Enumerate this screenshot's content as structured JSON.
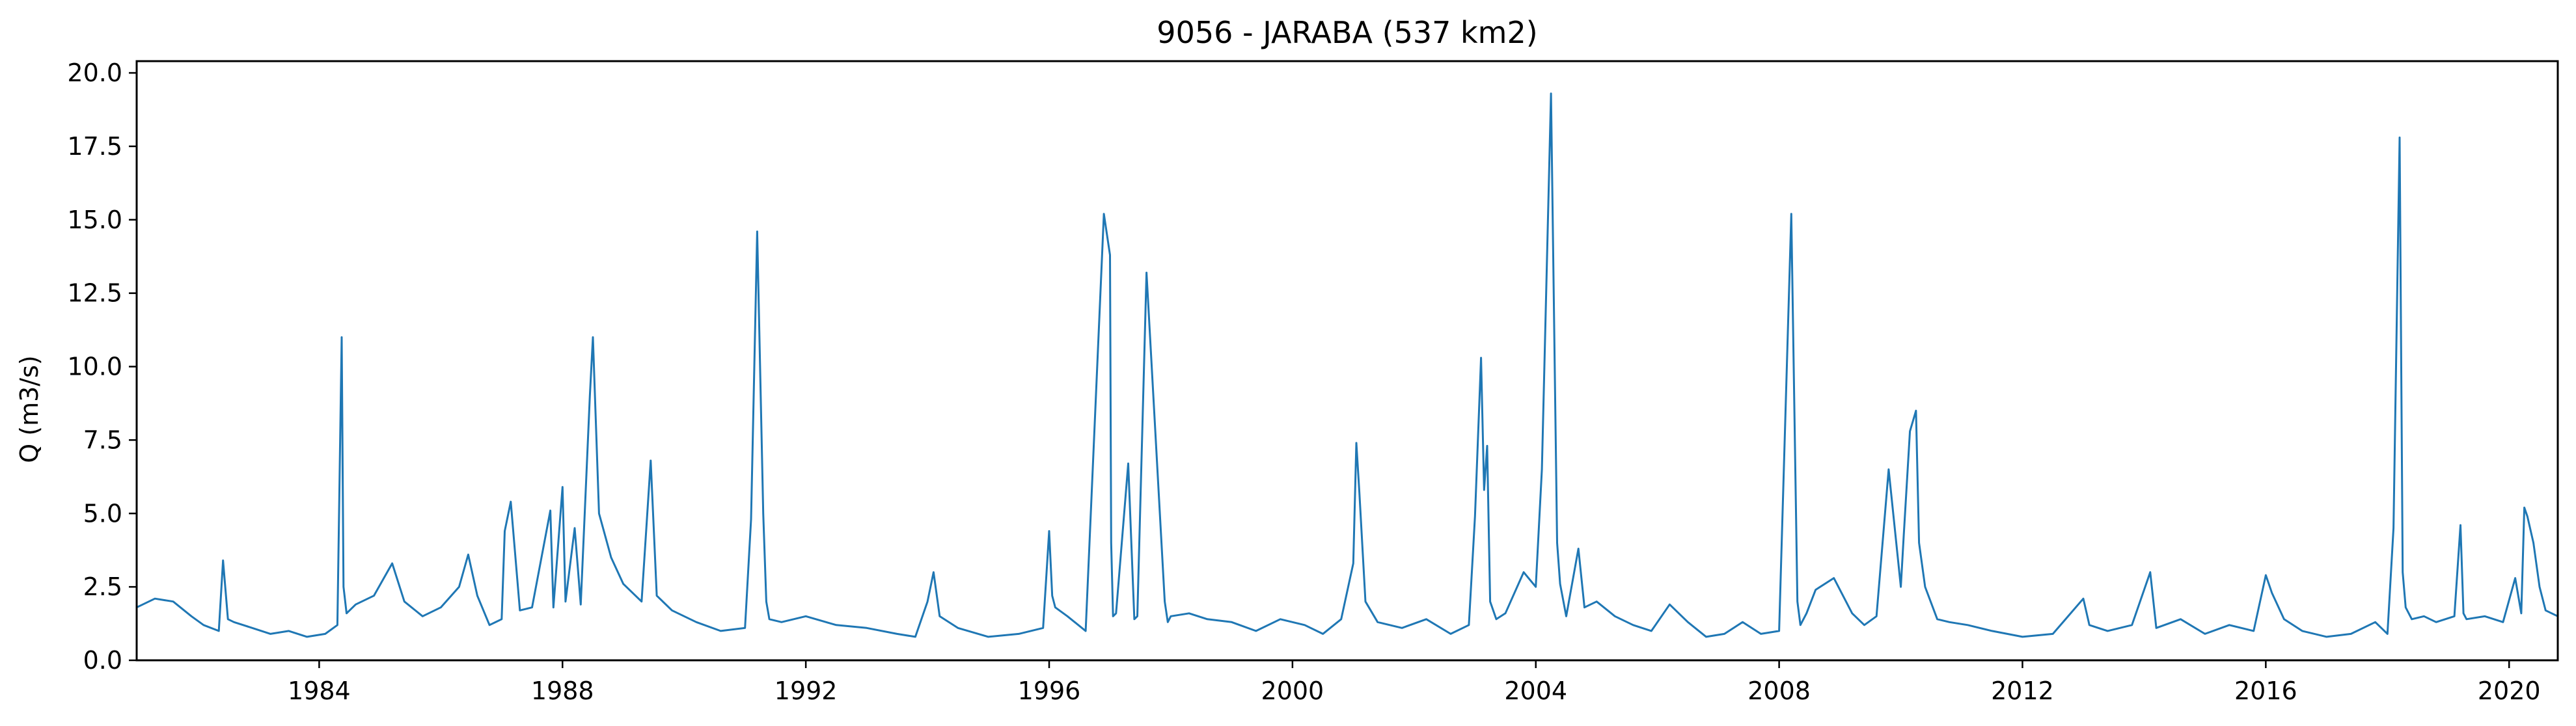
{
  "chart_data": {
    "type": "line",
    "title": "9056 - JARABA (537 km2)",
    "xlabel": "",
    "ylabel": "Q (m3/s)",
    "xlim": [
      1981.0,
      2020.8
    ],
    "ylim": [
      0.0,
      20.4
    ],
    "x_ticks": [
      1984,
      1988,
      1992,
      1996,
      2000,
      2004,
      2008,
      2012,
      2016,
      2020
    ],
    "y_ticks": [
      "0.0",
      "2.5",
      "5.0",
      "7.5",
      "10.0",
      "12.5",
      "15.0",
      "17.5",
      "20.0"
    ],
    "grid": false,
    "legend": "none",
    "series": [
      {
        "color": "#1f77b4",
        "x": [
          1981.0,
          1981.3,
          1981.6,
          1981.9,
          1982.1,
          1982.35,
          1982.42,
          1982.5,
          1982.6,
          1982.9,
          1983.2,
          1983.5,
          1983.8,
          1984.1,
          1984.3,
          1984.37,
          1984.4,
          1984.45,
          1984.6,
          1984.9,
          1985.2,
          1985.4,
          1985.7,
          1986.0,
          1986.3,
          1986.45,
          1986.6,
          1986.8,
          1987.0,
          1987.05,
          1987.15,
          1987.3,
          1987.5,
          1987.8,
          1987.85,
          1988.0,
          1988.05,
          1988.2,
          1988.3,
          1988.45,
          1988.5,
          1988.6,
          1988.8,
          1989.0,
          1989.3,
          1989.45,
          1989.55,
          1989.8,
          1990.2,
          1990.6,
          1991.0,
          1991.1,
          1991.2,
          1991.3,
          1991.35,
          1991.4,
          1991.6,
          1992.0,
          1992.5,
          1993.0,
          1993.5,
          1993.8,
          1994.0,
          1994.1,
          1994.2,
          1994.5,
          1995.0,
          1995.5,
          1995.9,
          1996.0,
          1996.05,
          1996.1,
          1996.3,
          1996.6,
          1996.9,
          1997.0,
          1997.02,
          1997.05,
          1997.1,
          1997.3,
          1997.4,
          1997.45,
          1997.6,
          1997.9,
          1997.95,
          1998.0,
          1998.3,
          1998.6,
          1999.0,
          1999.4,
          1999.8,
          2000.2,
          2000.5,
          2000.8,
          2001.0,
          2001.05,
          2001.1,
          2001.2,
          2001.4,
          2001.8,
          2002.2,
          2002.6,
          2002.9,
          2003.0,
          2003.1,
          2003.15,
          2003.2,
          2003.25,
          2003.35,
          2003.5,
          2003.8,
          2004.0,
          2004.1,
          2004.25,
          2004.35,
          2004.4,
          2004.5,
          2004.7,
          2004.8,
          2005.0,
          2005.3,
          2005.6,
          2005.9,
          2006.2,
          2006.5,
          2006.8,
          2007.1,
          2007.4,
          2007.7,
          2008.0,
          2008.2,
          2008.3,
          2008.35,
          2008.45,
          2008.6,
          2008.9,
          2009.2,
          2009.4,
          2009.6,
          2009.8,
          2010.0,
          2010.05,
          2010.15,
          2010.25,
          2010.3,
          2010.4,
          2010.6,
          2010.8,
          2011.1,
          2011.5,
          2012.0,
          2012.5,
          2013.0,
          2013.1,
          2013.4,
          2013.8,
          2014.1,
          2014.2,
          2014.6,
          2015.0,
          2015.4,
          2015.8,
          2016.0,
          2016.1,
          2016.3,
          2016.6,
          2017.0,
          2017.4,
          2017.8,
          2018.0,
          2018.1,
          2018.2,
          2018.25,
          2018.3,
          2018.4,
          2018.6,
          2018.8,
          2019.1,
          2019.2,
          2019.25,
          2019.3,
          2019.6,
          2019.9,
          2020.1,
          2020.2,
          2020.25,
          2020.3,
          2020.4,
          2020.5,
          2020.6,
          2020.8
        ],
        "y": [
          1.8,
          2.1,
          2.0,
          1.5,
          1.2,
          1.0,
          3.4,
          1.4,
          1.3,
          1.1,
          0.9,
          1.0,
          0.8,
          0.9,
          1.2,
          11.0,
          2.5,
          1.6,
          1.9,
          2.2,
          3.3,
          2.0,
          1.5,
          1.8,
          2.5,
          3.6,
          2.2,
          1.2,
          1.4,
          4.4,
          5.4,
          1.7,
          1.8,
          5.1,
          1.8,
          5.9,
          2.0,
          4.5,
          1.9,
          9.0,
          11.0,
          5.0,
          3.5,
          2.6,
          2.0,
          6.8,
          2.2,
          1.7,
          1.3,
          1.0,
          1.1,
          4.8,
          14.6,
          5.0,
          2.0,
          1.4,
          1.3,
          1.5,
          1.2,
          1.1,
          0.9,
          0.8,
          2.0,
          3.0,
          1.5,
          1.1,
          0.8,
          0.9,
          1.1,
          4.4,
          2.2,
          1.8,
          1.5,
          1.0,
          15.2,
          13.8,
          4.0,
          1.5,
          1.6,
          6.7,
          1.4,
          1.5,
          13.2,
          2.0,
          1.3,
          1.5,
          1.6,
          1.4,
          1.3,
          1.0,
          1.4,
          1.2,
          0.9,
          1.4,
          3.3,
          7.4,
          5.7,
          2.0,
          1.3,
          1.1,
          1.4,
          0.9,
          1.2,
          4.9,
          10.3,
          5.8,
          7.3,
          2.0,
          1.4,
          1.6,
          3.0,
          2.5,
          6.5,
          19.3,
          4.0,
          2.6,
          1.5,
          3.8,
          1.8,
          2.0,
          1.5,
          1.2,
          1.0,
          1.9,
          1.3,
          0.8,
          0.9,
          1.3,
          0.9,
          1.0,
          15.2,
          2.0,
          1.2,
          1.6,
          2.4,
          2.8,
          1.6,
          1.2,
          1.5,
          6.5,
          2.5,
          4.3,
          7.8,
          8.5,
          4.0,
          2.5,
          1.4,
          1.3,
          1.2,
          1.0,
          0.8,
          0.9,
          2.1,
          1.2,
          1.0,
          1.2,
          3.0,
          1.1,
          1.4,
          0.9,
          1.2,
          1.0,
          2.9,
          2.3,
          1.4,
          1.0,
          0.8,
          0.9,
          1.3,
          0.9,
          4.5,
          17.8,
          3.0,
          1.8,
          1.4,
          1.5,
          1.3,
          1.5,
          4.6,
          1.6,
          1.4,
          1.5,
          1.3,
          2.8,
          1.6,
          5.2,
          4.9,
          4.0,
          2.5,
          1.7,
          1.5
        ]
      }
    ]
  }
}
